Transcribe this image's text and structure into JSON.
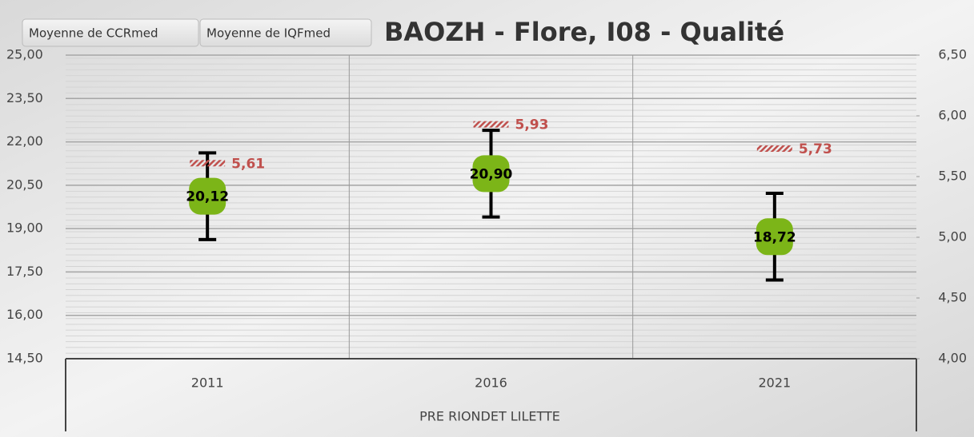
{
  "chart_data": {
    "type": "errorbar_pivot",
    "title": "BAOZH - Flore, I08 - Qualité",
    "buttons": [
      "Moyenne de CCRmed",
      "Moyenne de IQFmed"
    ],
    "categories": [
      "2011",
      "2016",
      "2021"
    ],
    "category_group": "PRE RIONDET LILETTE",
    "series": [
      {
        "name": "Moyenne de CCRmed",
        "color": "#7cb518",
        "values": [
          20.12,
          20.9,
          18.72
        ],
        "value_labels": [
          "20,12",
          "20,90",
          "18,72"
        ],
        "errors": [
          1.5,
          1.5,
          1.5
        ]
      },
      {
        "name": "Moyenne de IQFmed",
        "color": "#c0504d",
        "axis": "y2",
        "values": [
          5.61,
          5.93,
          5.73
        ],
        "value_labels": [
          "5,61",
          "5,93",
          "5,73"
        ]
      }
    ],
    "ylim": [
      14.5,
      25
    ],
    "yticks": [
      {
        "value": 14.5,
        "label": "14,50"
      },
      {
        "value": 16,
        "label": "16,00"
      },
      {
        "value": 17.5,
        "label": "17,50"
      },
      {
        "value": 19,
        "label": "19,00"
      },
      {
        "value": 20.5,
        "label": "20,50"
      },
      {
        "value": 22,
        "label": "22,00"
      },
      {
        "value": 23.5,
        "label": "23,50"
      },
      {
        "value": 25,
        "label": "25,00"
      }
    ],
    "y2lim": [
      4,
      6.5
    ],
    "y2ticks": [
      {
        "value": 4,
        "label": "4,00"
      },
      {
        "value": 4.5,
        "label": "4,50"
      },
      {
        "value": 5,
        "label": "5,00"
      },
      {
        "value": 5.5,
        "label": "5,50"
      },
      {
        "value": 6,
        "label": "6,00"
      },
      {
        "value": 6.5,
        "label": "6,50"
      }
    ],
    "grid": true
  }
}
